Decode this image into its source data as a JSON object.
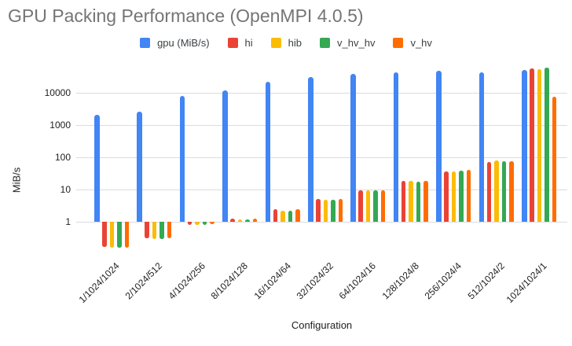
{
  "title": "GPU Packing Performance (OpenMPI 4.0.5)",
  "chart_data": {
    "type": "bar",
    "title": "GPU Packing Performance (OpenMPI 4.0.5)",
    "xlabel": "Configuration",
    "ylabel": "MiB/s",
    "y_scale": "log",
    "y_ticks": [
      1,
      10,
      100,
      1000,
      10000
    ],
    "ylim": [
      0.13,
      63000
    ],
    "grid": true,
    "legend_position": "top",
    "title_color": "#757575",
    "gridline_color": "#dadce0",
    "categories": [
      "1/1024/1024",
      "2/1024/512",
      "4/1024/256",
      "8/1024/128",
      "16/1024/64",
      "32/1024/32",
      "64/1024/16",
      "128/1024/8",
      "256/1024/4",
      "512/1024/2",
      "1024/1024/1"
    ],
    "series": [
      {
        "name": "gpu (MiB/s)",
        "color": "#4285F4",
        "values": [
          2100,
          2600,
          7900,
          12000,
          22000,
          31000,
          39000,
          42000,
          48000,
          43000,
          52000
        ]
      },
      {
        "name": "hi",
        "color": "#EA4335",
        "values": [
          0.17,
          0.3,
          0.8,
          1.25,
          2.4,
          5.0,
          9.7,
          19,
          36,
          73,
          58000
        ]
      },
      {
        "name": "hib",
        "color": "#FBBC04",
        "values": [
          0.16,
          0.29,
          0.8,
          1.2,
          2.2,
          4.8,
          9.3,
          19,
          37,
          78,
          53000
        ]
      },
      {
        "name": "v_hv_hv",
        "color": "#34A853",
        "values": [
          0.16,
          0.29,
          0.8,
          1.2,
          2.2,
          4.8,
          9.5,
          18,
          38,
          74,
          60000
        ]
      },
      {
        "name": "v_hv",
        "color": "#FF6D01",
        "values": [
          0.16,
          0.3,
          0.85,
          1.25,
          2.4,
          5.0,
          9.7,
          19,
          40,
          77,
          7500
        ]
      }
    ]
  }
}
